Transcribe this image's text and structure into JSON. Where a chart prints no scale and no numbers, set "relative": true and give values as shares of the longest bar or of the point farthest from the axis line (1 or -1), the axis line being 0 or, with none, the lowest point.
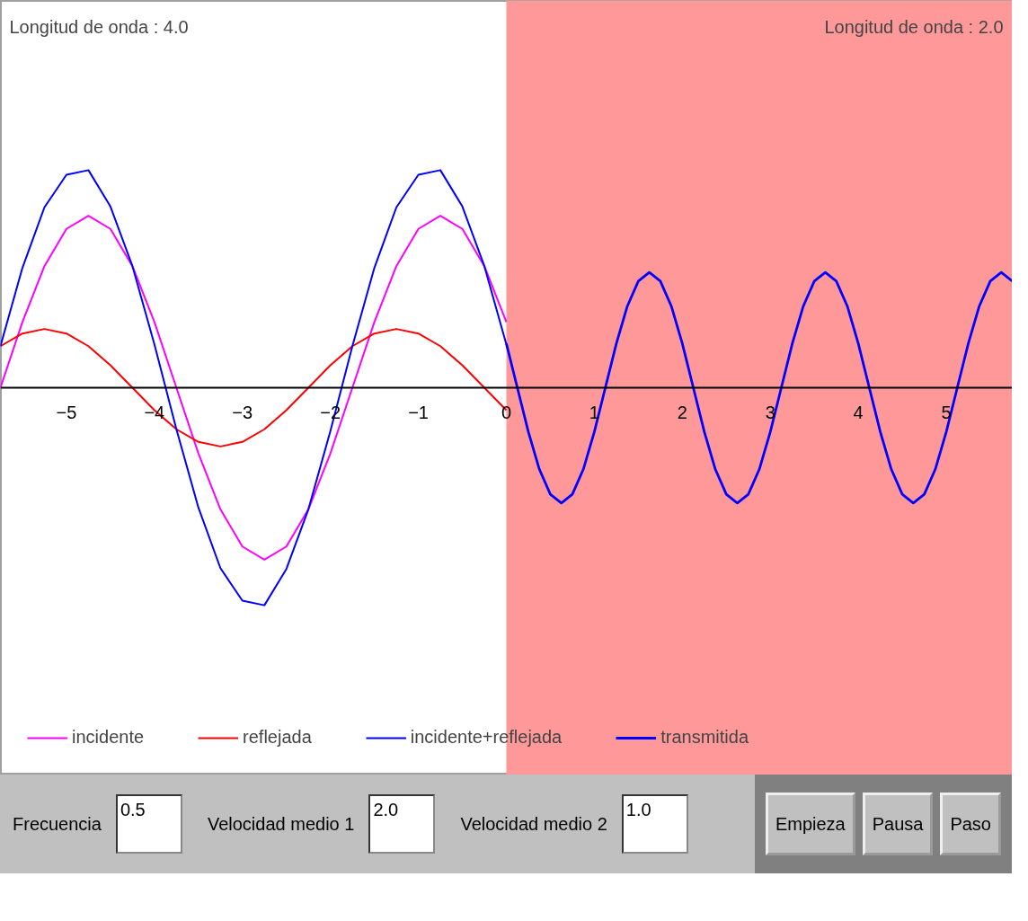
{
  "chart_data": {
    "type": "line",
    "relative": true,
    "xlim": [
      -5.75,
      5.75
    ],
    "xticks": [
      -5,
      -4,
      -3,
      -2,
      -1,
      0,
      1,
      2,
      3,
      4,
      5
    ],
    "tick_labels": "x",
    "grid": false,
    "legend": "bottom left",
    "marker": "none",
    "line_style": "solid",
    "x": [
      -5.75,
      -5.5,
      -5.25,
      -5,
      -4.75,
      -4.5,
      -4.25,
      -4,
      -3.75,
      -3.5,
      -3.25,
      -3,
      -2.75,
      -2.5,
      -2.25,
      -2,
      -1.75,
      -1.5,
      -1.25,
      -1,
      -0.75,
      -0.5,
      -0.25,
      0
    ],
    "series": [
      {
        "name": "incidente",
        "color": "#ff00ff",
        "values": [
          0,
          0.302,
          0.559,
          0.73,
          0.79,
          0.73,
          0.559,
          0.302,
          0,
          -0.302,
          -0.559,
          -0.73,
          -0.79,
          -0.73,
          -0.559,
          -0.302,
          0,
          0.302,
          0.559,
          0.73,
          0.79,
          0.73,
          0.559,
          0.302
        ]
      },
      {
        "name": "reflejada",
        "color": "#ff0000",
        "values": [
          0.191,
          0.249,
          0.27,
          0.249,
          0.191,
          0.103,
          0,
          -0.103,
          -0.191,
          -0.249,
          -0.27,
          -0.249,
          -0.191,
          -0.103,
          0,
          0.103,
          0.191,
          0.249,
          0.27,
          0.249,
          0.191,
          0.103,
          0,
          -0.103
        ]
      },
      {
        "name": "incidente+reflejada",
        "color": "#0000ff",
        "values": [
          0.191,
          0.551,
          0.829,
          0.979,
          1,
          0.833,
          0.559,
          0.199,
          -0.191,
          -0.551,
          -0.829,
          -0.979,
          -1,
          -0.833,
          -0.559,
          -0.199,
          0.191,
          0.551,
          0.829,
          0.979,
          1,
          0.833,
          0.559,
          0.199
        ]
      },
      {
        "name": "transmitida",
        "color": "#0000ff",
        "x": [
          0,
          0.125,
          0.25,
          0.375,
          0.5,
          0.625,
          0.75,
          0.875,
          1,
          1.125,
          1.25,
          1.375,
          1.5,
          1.625,
          1.75,
          1.875,
          2,
          2.125,
          2.25,
          2.375,
          2.5,
          2.625,
          2.75,
          2.875,
          3,
          3.125,
          3.25,
          3.375,
          3.5,
          3.625,
          3.75,
          3.875,
          4,
          4.125,
          4.25,
          4.375,
          4.5,
          4.625,
          4.75,
          4.875,
          5,
          5.125,
          5.25,
          5.375,
          5.5,
          5.625,
          5.75
        ],
        "values": [
          0.203,
          0,
          -0.203,
          -0.375,
          -0.49,
          -0.53,
          -0.49,
          -0.375,
          -0.203,
          0,
          0.203,
          0.375,
          0.49,
          0.53,
          0.49,
          0.375,
          0.203,
          0,
          -0.203,
          -0.375,
          -0.49,
          -0.53,
          -0.49,
          -0.375,
          -0.203,
          0,
          0.203,
          0.375,
          0.49,
          0.53,
          0.49,
          0.375,
          0.203,
          0,
          -0.203,
          -0.375,
          -0.49,
          -0.53,
          -0.49,
          -0.375,
          -0.203,
          0,
          0.203,
          0.375,
          0.49,
          0.53,
          0.49
        ]
      }
    ],
    "bands": [
      {
        "axis": "x",
        "from": 0,
        "to": 5.75,
        "color": "#ff9999"
      }
    ],
    "annotations": [
      "Longitud de onda : 4.0",
      "Longitud de onda : 2.0",
      "Frecuencia",
      "0.5",
      "Velocidad medio 1",
      "2.0",
      "Velocidad medio 2",
      "1.0",
      "Empieza",
      "Pausa",
      "Paso"
    ]
  }
}
